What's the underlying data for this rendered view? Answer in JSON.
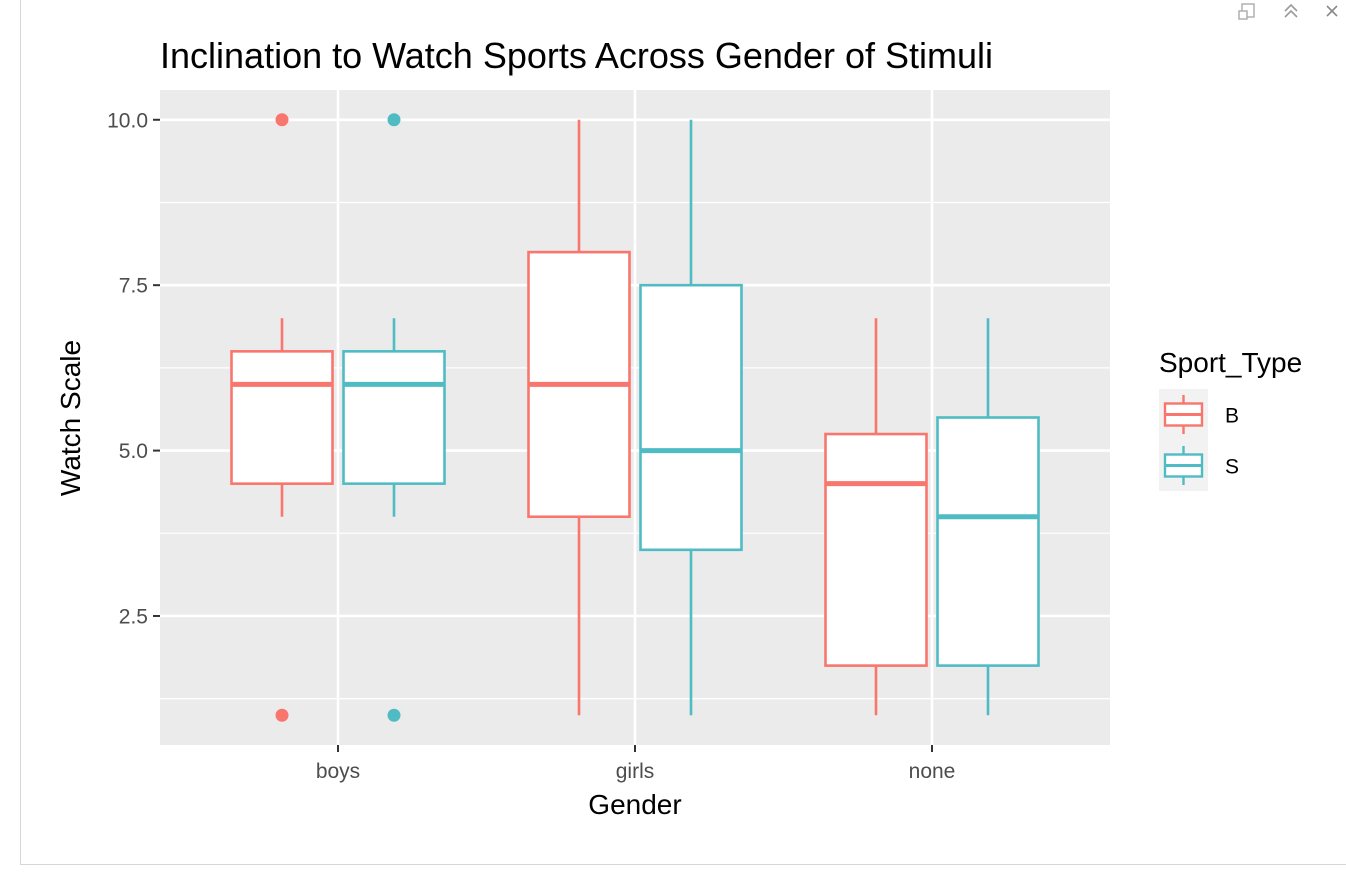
{
  "window_controls": {
    "pop_out_icon": "popout-window-icon",
    "collapse_icon": "double-chevron-up-icon",
    "close_icon": "close-icon"
  },
  "chart_data": {
    "type": "boxplot",
    "title": "Inclination to Watch Sports Across Gender of Stimuli",
    "xlabel": "Gender",
    "ylabel": "Watch Scale",
    "categories": [
      "boys",
      "girls",
      "none"
    ],
    "y_ticks": [
      2.5,
      5.0,
      7.5,
      10.0
    ],
    "y_tick_labels": [
      "2.5",
      "5.0",
      "7.5",
      "10.0"
    ],
    "ylim": [
      0.55,
      10.45
    ],
    "grid": true,
    "panel_background": "#ebebeb",
    "legend": {
      "title": "Sport_Type",
      "position": "right",
      "entries": [
        "B",
        "S"
      ]
    },
    "series": [
      {
        "name": "B",
        "color": "#f8766d",
        "boxes": [
          {
            "category": "boys",
            "whisker_low": 4.0,
            "q1": 4.5,
            "median": 6.0,
            "q3": 6.5,
            "whisker_high": 7.0,
            "outliers": [
              1.0,
              10.0
            ]
          },
          {
            "category": "girls",
            "whisker_low": 1.0,
            "q1": 4.0,
            "median": 6.0,
            "q3": 8.0,
            "whisker_high": 10.0,
            "outliers": []
          },
          {
            "category": "none",
            "whisker_low": 1.0,
            "q1": 1.75,
            "median": 4.5,
            "q3": 5.25,
            "whisker_high": 7.0,
            "outliers": []
          }
        ]
      },
      {
        "name": "S",
        "color": "#4fbcc4",
        "boxes": [
          {
            "category": "boys",
            "whisker_low": 4.0,
            "q1": 4.5,
            "median": 6.0,
            "q3": 6.5,
            "whisker_high": 7.0,
            "outliers": [
              1.0,
              10.0
            ]
          },
          {
            "category": "girls",
            "whisker_low": 1.0,
            "q1": 3.5,
            "median": 5.0,
            "q3": 7.5,
            "whisker_high": 10.0,
            "outliers": []
          },
          {
            "category": "none",
            "whisker_low": 1.0,
            "q1": 1.75,
            "median": 4.0,
            "q3": 5.5,
            "whisker_high": 7.0,
            "outliers": []
          }
        ]
      }
    ]
  }
}
